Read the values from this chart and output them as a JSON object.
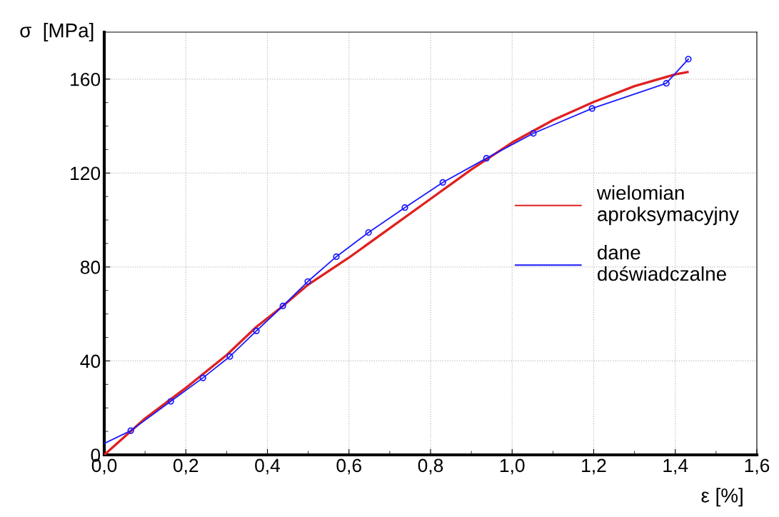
{
  "chart_data": {
    "type": "line",
    "xlabel": "ε [%]",
    "ylabel": "σ  [MPa]",
    "xlim": [
      0,
      1.6
    ],
    "ylim": [
      0,
      180
    ],
    "xticks": [
      {
        "value": 0,
        "label": "0,0"
      },
      {
        "value": 0.2,
        "label": "0,2"
      },
      {
        "value": 0.4,
        "label": "0,4"
      },
      {
        "value": 0.6,
        "label": "0,6"
      },
      {
        "value": 0.8,
        "label": "0,8"
      },
      {
        "value": 1.0,
        "label": "1,0"
      },
      {
        "value": 1.2,
        "label": "1,2"
      },
      {
        "value": 1.4,
        "label": "1,4"
      },
      {
        "value": 1.6,
        "label": "1,6"
      }
    ],
    "yticks": [
      0,
      40,
      80,
      120,
      160
    ],
    "grid": true,
    "legend": "right",
    "series": [
      {
        "name": "wielomian\naproksymacyjny",
        "color": "#e02020",
        "marker": "none",
        "x": [
          0,
          0.1,
          0.2,
          0.3,
          0.373,
          0.438,
          0.5,
          0.6,
          0.7,
          0.8,
          0.9,
          1.0,
          1.1,
          1.2,
          1.3,
          1.4,
          1.43
        ],
        "values": [
          0,
          15.5,
          28.5,
          42.5,
          54.5,
          63.4,
          72.5,
          84,
          96.5,
          109,
          121.5,
          133,
          142.5,
          150.3,
          157,
          162,
          163
        ]
      },
      {
        "name": "dane\ndoświadczalne",
        "color": "#1a1aff",
        "marker": "none",
        "x": [
          0,
          0.065,
          0.163,
          0.242,
          0.308,
          0.373,
          0.438,
          0.499,
          0.569,
          0.648,
          0.737,
          0.83,
          0.937,
          1.052,
          1.196,
          1.378,
          1.432
        ],
        "values": [
          4.9,
          10.3,
          22.8,
          32.8,
          41.9,
          52.8,
          63.4,
          73.8,
          84.4,
          94.7,
          105.3,
          116.0,
          126.3,
          136.9,
          147.5,
          158.2,
          168.5
        ]
      },
      {
        "color": "#1a1aff",
        "type": "scatter",
        "marker": "circle",
        "x": [
          0.065,
          0.163,
          0.242,
          0.308,
          0.373,
          0.438,
          0.499,
          0.569,
          0.648,
          0.737,
          0.83,
          0.937,
          1.052,
          1.196,
          1.378,
          1.432
        ],
        "values": [
          10.3,
          22.8,
          32.8,
          41.9,
          52.8,
          63.4,
          73.8,
          84.4,
          94.7,
          105.3,
          116.0,
          126.3,
          136.9,
          147.5,
          158.2,
          168.5
        ]
      }
    ]
  }
}
